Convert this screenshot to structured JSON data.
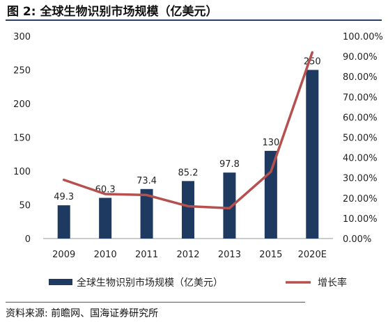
{
  "figure": {
    "title": "图 2:  全球生物识别市场规模（亿美元）",
    "source": "资料来源:  前瞻网、国海证券研究所"
  },
  "colors": {
    "bar": "#1f3a60",
    "line": "#b5504f",
    "title_rule": "#2a3f66"
  },
  "chart_data": {
    "type": "bar",
    "title": "",
    "categories": [
      "2009",
      "2010",
      "2011",
      "2012",
      "2013",
      "2015",
      "2020E"
    ],
    "series": [
      {
        "name": "全球生物识别市场规模（亿美元）",
        "type": "bar",
        "axis": "left",
        "values": [
          49.3,
          60.3,
          73.4,
          85.2,
          97.8,
          130,
          250
        ],
        "labels": [
          "49.3",
          "60.3",
          "73.4",
          "85.2",
          "97.8",
          "130",
          "250"
        ]
      },
      {
        "name": "增长率",
        "type": "line",
        "axis": "right",
        "values": [
          0.29,
          0.22,
          0.215,
          0.16,
          0.15,
          0.33,
          0.92
        ]
      }
    ],
    "left_axis": {
      "min": 0,
      "max": 300,
      "ticks": [
        "0",
        "50",
        "100",
        "150",
        "200",
        "250",
        "300"
      ]
    },
    "right_axis": {
      "min": 0,
      "max": 1,
      "ticks": [
        "0.00%",
        "10.00%",
        "20.00%",
        "30.00%",
        "40.00%",
        "50.00%",
        "60.00%",
        "70.00%",
        "80.00%",
        "90.00%",
        "100.00%"
      ]
    },
    "grid": false,
    "legend_position": "bottom"
  }
}
